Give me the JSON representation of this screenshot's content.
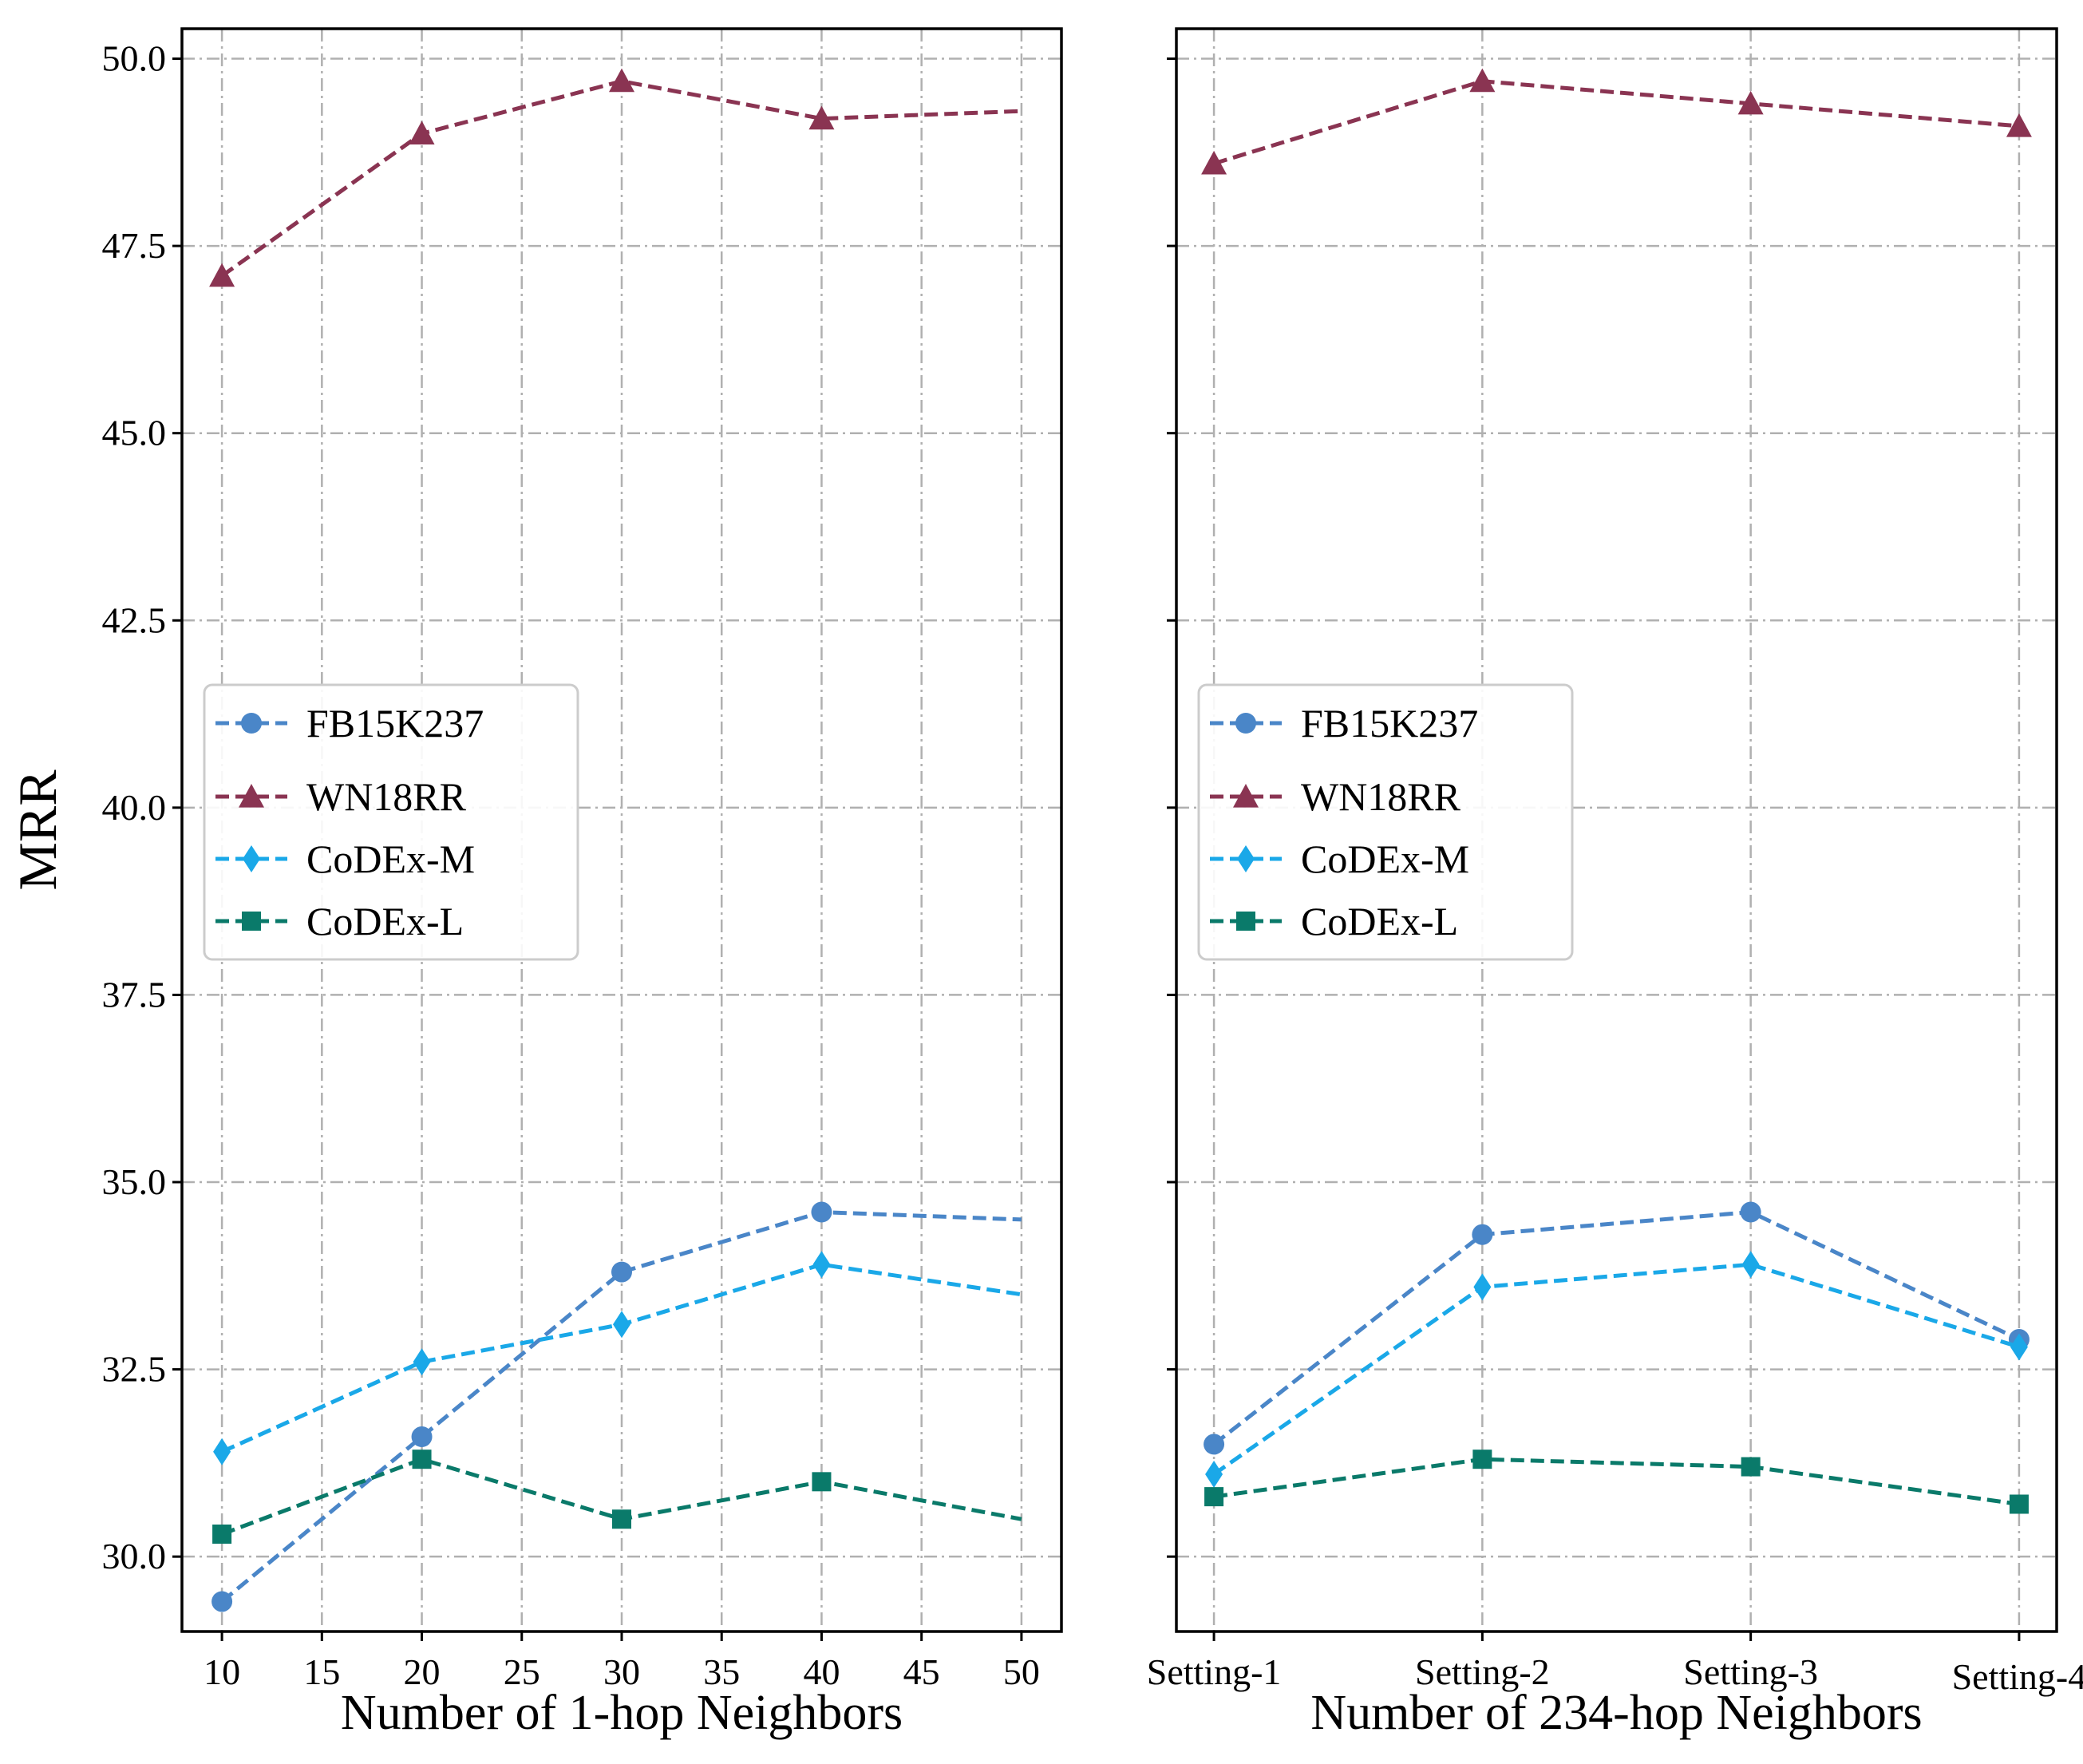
{
  "chart_data": [
    {
      "type": "line",
      "xlabel": "Number of 1-hop Neighbors",
      "ylabel": "MRR",
      "x": [
        10,
        20,
        30,
        40,
        50
      ],
      "xticks": [
        "10",
        "15",
        "20",
        "25",
        "30",
        "35",
        "40",
        "45",
        "50"
      ],
      "yticks": [
        "30.0",
        "32.5",
        "35.0",
        "37.5",
        "40.0",
        "42.5",
        "45.0",
        "47.5",
        "50.0"
      ],
      "xlim": [
        8,
        52
      ],
      "ylim": [
        29.0,
        50.4
      ],
      "grid": true,
      "legend_position": "center-left",
      "series": [
        {
          "name": "FB15K237",
          "color": "#4a86c8",
          "marker": "circle",
          "values": [
            29.4,
            31.6,
            33.8,
            34.6,
            34.5
          ]
        },
        {
          "name": "WN18RR",
          "color": "#8a3452",
          "marker": "triangle",
          "values": [
            47.1,
            49.0,
            49.7,
            49.2,
            49.3
          ]
        },
        {
          "name": "CoDEx-M",
          "color": "#1aa8e8",
          "marker": "diamond",
          "values": [
            31.4,
            32.6,
            33.1,
            33.9,
            33.5
          ]
        },
        {
          "name": "CoDEx-L",
          "color": "#0a7a6a",
          "marker": "square",
          "values": [
            30.3,
            31.3,
            30.5,
            31.0,
            30.5
          ]
        }
      ]
    },
    {
      "type": "line",
      "xlabel": "Number of 234-hop Neighbors",
      "ylabel": "",
      "x": [
        "Setting-1",
        "Setting-2",
        "Setting-3",
        "Setting-4"
      ],
      "xticks": [
        "Setting-1",
        "Setting-2",
        "Setting-3",
        "Setting-4"
      ],
      "xlim": [
        -0.14,
        3.14
      ],
      "ylim": [
        29.0,
        50.4
      ],
      "grid": true,
      "legend_position": "center-left",
      "series": [
        {
          "name": "FB15K237",
          "color": "#4a86c8",
          "marker": "circle",
          "values": [
            31.5,
            34.3,
            34.6,
            32.9
          ]
        },
        {
          "name": "WN18RR",
          "color": "#8a3452",
          "marker": "triangle",
          "values": [
            48.6,
            49.7,
            49.4,
            49.1
          ]
        },
        {
          "name": "CoDEx-M",
          "color": "#1aa8e8",
          "marker": "diamond",
          "values": [
            31.1,
            33.6,
            33.9,
            32.8
          ]
        },
        {
          "name": "CoDEx-L",
          "color": "#0a7a6a",
          "marker": "square",
          "values": [
            30.8,
            31.3,
            31.2,
            30.7
          ]
        }
      ]
    }
  ]
}
